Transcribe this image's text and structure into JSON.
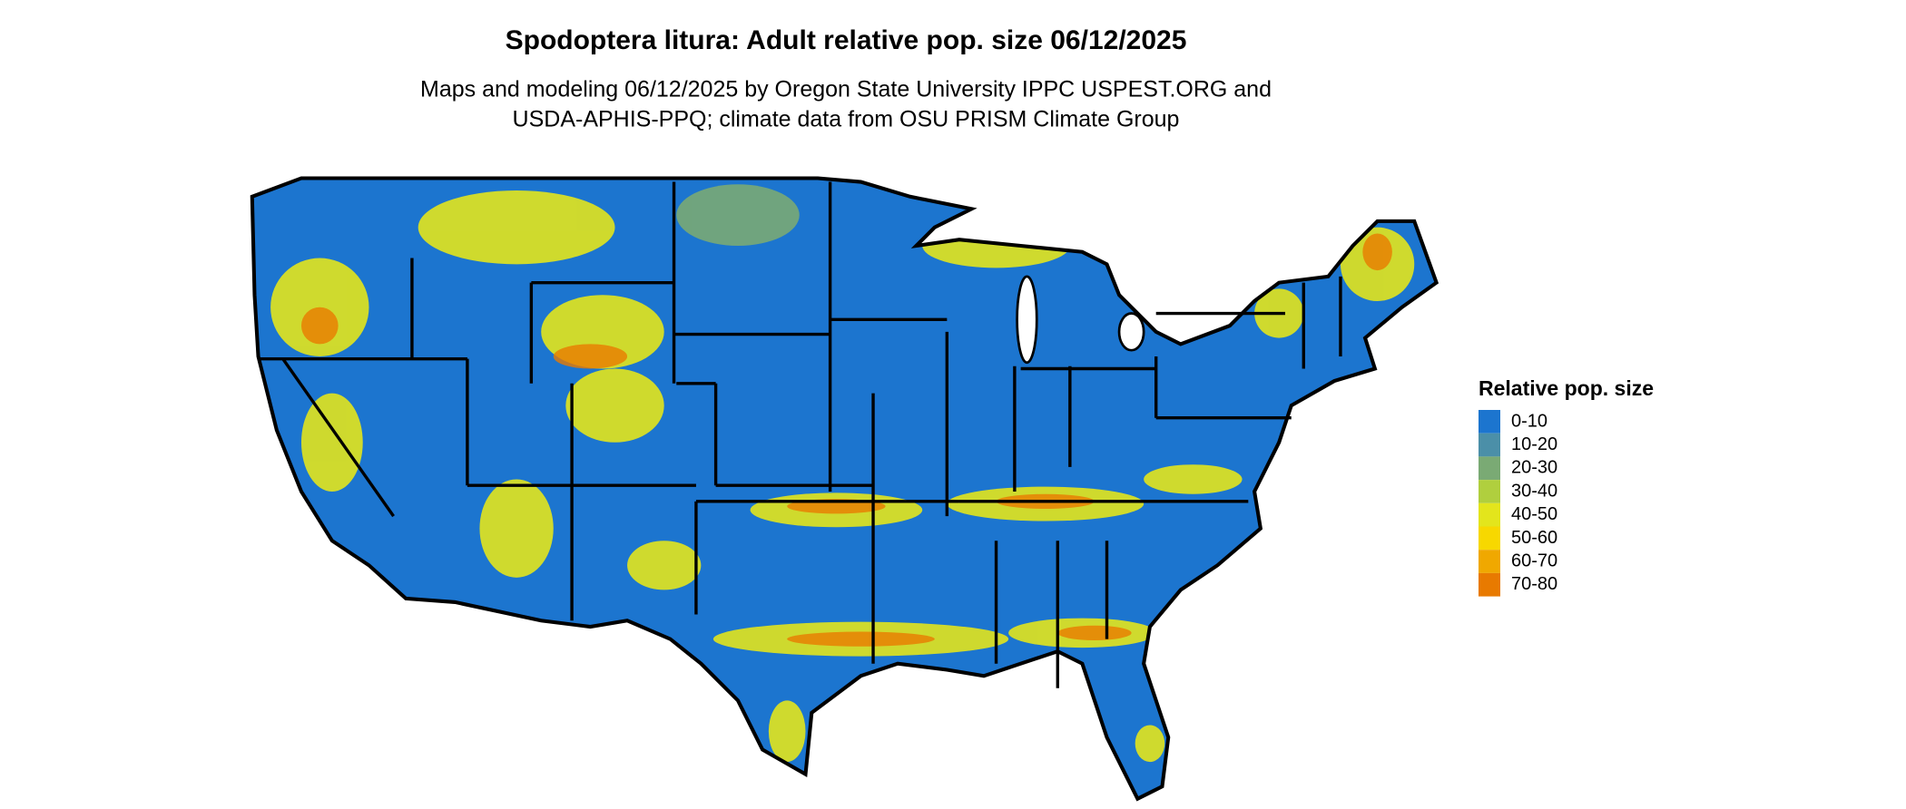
{
  "header": {
    "title": "Spodoptera litura: Adult relative pop. size 06/12/2025",
    "subtitle": [
      "Maps and modeling 06/12/2025 by Oregon State University IPPC USPEST.ORG and",
      "USDA-APHIS-PPQ; climate data from OSU PRISM Climate Group"
    ]
  },
  "legend": {
    "title": "Relative pop. size",
    "items": [
      {
        "label": "0-10",
        "color": "#1c75cf"
      },
      {
        "label": "10-20",
        "color": "#4b8fa8"
      },
      {
        "label": "20-30",
        "color": "#7aaa74"
      },
      {
        "label": "30-40",
        "color": "#b0cf3e"
      },
      {
        "label": "40-50",
        "color": "#e3e51c"
      },
      {
        "label": "50-60",
        "color": "#f7d800"
      },
      {
        "label": "60-70",
        "color": "#f0a800"
      },
      {
        "label": "70-80",
        "color": "#e87a00"
      }
    ]
  }
}
